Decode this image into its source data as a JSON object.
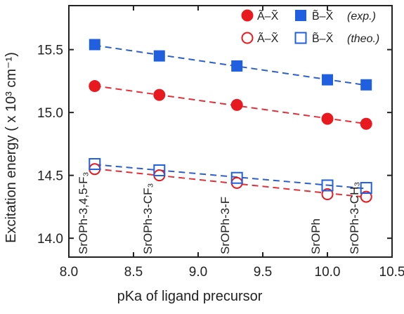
{
  "chart_data": {
    "type": "scatter",
    "xlabel": "pKa of ligand precursor",
    "ylabel": "Excitation energy ( x 10³ cm⁻¹)",
    "xlim": [
      8.0,
      10.5
    ],
    "ylim": [
      13.85,
      15.85
    ],
    "xticks": [
      "8.0",
      "8.5",
      "9.0",
      "9.5",
      "10.0",
      "10.5"
    ],
    "yticks": [
      "14.0",
      "14.5",
      "15.0",
      "15.5"
    ],
    "series": [
      {
        "name": "Ã–X̃ (exp.)",
        "marker": "circle",
        "filled": true,
        "color": "#e8191f",
        "line_color": "#e0303a",
        "x": [
          8.2,
          8.7,
          9.3,
          10.0,
          10.3
        ],
        "y": [
          15.21,
          15.14,
          15.06,
          14.95,
          14.91
        ]
      },
      {
        "name": "B̃–X̃ (exp.)",
        "marker": "square",
        "filled": true,
        "color": "#1f5fe0",
        "line_color": "#2f5fc8",
        "x": [
          8.2,
          8.7,
          9.3,
          10.0,
          10.3
        ],
        "y": [
          15.54,
          15.45,
          15.37,
          15.26,
          15.22
        ]
      },
      {
        "name": "Ã–X̃ (theo.)",
        "marker": "circle",
        "filled": false,
        "color": "#e8191f",
        "line_color": "#e0303a",
        "x": [
          8.2,
          8.7,
          9.3,
          10.0,
          10.3
        ],
        "y": [
          14.55,
          14.5,
          14.44,
          14.35,
          14.33
        ]
      },
      {
        "name": "B̃–X̃ (theo.)",
        "marker": "square",
        "filled": false,
        "color": "#1f5fe0",
        "line_color": "#2f5fc8",
        "x": [
          8.2,
          8.7,
          9.3,
          10.0,
          10.3
        ],
        "y": [
          14.59,
          14.54,
          14.48,
          14.42,
          14.4
        ]
      }
    ],
    "legend": {
      "placement": "top-right",
      "rows": [
        {
          "a_label": "Ã–X̃",
          "b_label": "B̃–X̃",
          "tag": "(exp.)"
        },
        {
          "a_label": "Ã–X̃",
          "b_label": "B̃–X̃",
          "tag": "(theo.)"
        }
      ]
    },
    "samples": [
      {
        "label": "SrOPh-3,4,5-F₃",
        "x": 8.2
      },
      {
        "label": "SrOPh-3-CF₃",
        "x": 8.7
      },
      {
        "label": "SrOPh-3-F",
        "x": 9.3
      },
      {
        "label": "SrOPh",
        "x": 10.0
      },
      {
        "label": "SrOPh-3-CH₃",
        "x": 10.3
      }
    ]
  }
}
